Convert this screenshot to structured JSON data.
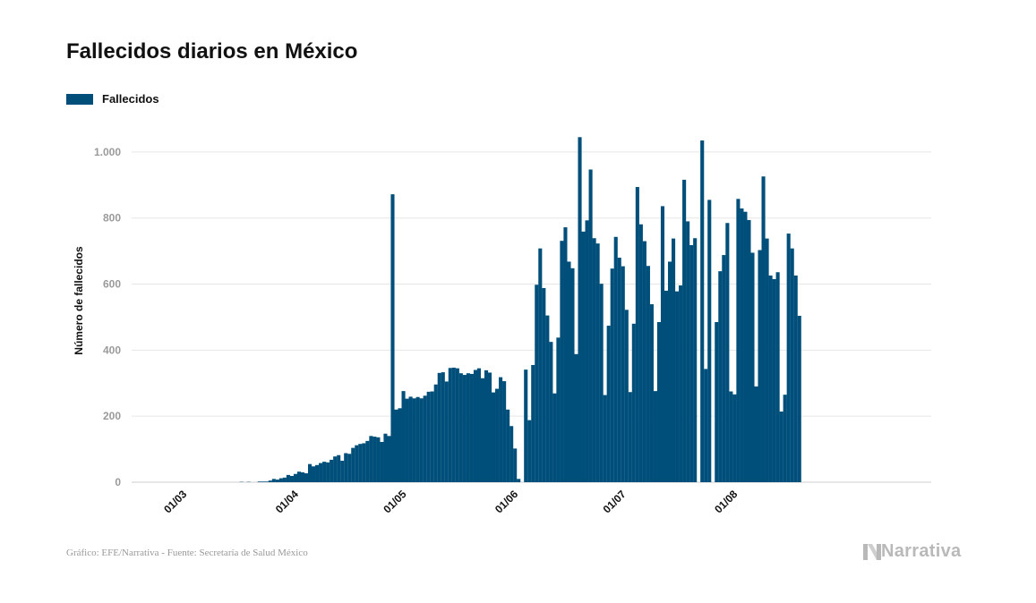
{
  "title": "Fallecidos diarios en México",
  "colors": {
    "bar": "#004f7a",
    "grid": "#e6e6e6",
    "brand": "#b9b9b9"
  },
  "footer": {
    "source": "Gráfico: EFE/Narrativa - Fuente: Secretaría de Salud México",
    "brand": "Narrativa",
    "brand_icon": "narrativa-logo-icon"
  },
  "chart_data": {
    "type": "bar",
    "title": "Fallecidos diarios en México",
    "xlabel": "",
    "ylabel": "Número de fallecidos",
    "legend": {
      "position": "top-left",
      "entries": [
        "Fallecidos"
      ]
    },
    "series": [
      {
        "name": "Fallecidos",
        "color": "#004f7a",
        "start_date": "2020-02-20"
      }
    ],
    "ylim": [
      0,
      1100
    ],
    "yticks": [
      0,
      200,
      400,
      600,
      800,
      1000
    ],
    "ytick_labels": [
      "0",
      "200",
      "400",
      "600",
      "800",
      "1.000"
    ],
    "xtick_labels": [
      "01/03",
      "01/04",
      "01/05",
      "01/06",
      "01/07",
      "01/08"
    ],
    "xtick_index": [
      10,
      41,
      71,
      102,
      132,
      163
    ],
    "grid": true,
    "values": [
      0,
      0,
      0,
      0,
      0,
      0,
      0,
      0,
      0,
      0,
      0,
      0,
      0,
      0,
      0,
      0,
      0,
      0,
      0,
      0,
      0,
      0,
      0,
      0,
      0,
      0,
      0,
      0,
      0,
      0,
      1,
      0,
      1,
      0,
      0,
      2,
      2,
      2,
      5,
      10,
      8,
      12,
      14,
      22,
      19,
      25,
      32,
      30,
      27,
      55,
      48,
      52,
      58,
      62,
      60,
      68,
      78,
      82,
      65,
      88,
      86,
      104,
      112,
      116,
      118,
      125,
      140,
      138,
      136,
      122,
      147,
      140,
      872,
      220,
      224,
      276,
      253,
      259,
      254,
      258,
      254,
      262,
      274,
      275,
      296,
      331,
      333,
      305,
      346,
      347,
      345,
      330,
      325,
      330,
      328,
      340,
      345,
      315,
      339,
      332,
      272,
      283,
      318,
      306,
      220,
      170,
      102,
      10,
      0,
      341,
      188,
      355,
      598,
      708,
      588,
      505,
      425,
      269,
      438,
      731,
      772,
      668,
      648,
      388,
      1045,
      759,
      793,
      947,
      739,
      723,
      601,
      264,
      474,
      647,
      743,
      680,
      654,
      522,
      273,
      480,
      894,
      781,
      730,
      655,
      539,
      276,
      485,
      836,
      580,
      668,
      738,
      578,
      596,
      916,
      790,
      718,
      739,
      0,
      1035,
      343,
      855,
      0,
      485,
      639,
      688,
      785,
      275,
      266,
      858,
      829,
      819,
      794,
      695,
      290,
      703,
      926,
      738,
      626,
      615,
      636,
      214,
      265,
      753,
      708,
      626,
      504
    ]
  }
}
